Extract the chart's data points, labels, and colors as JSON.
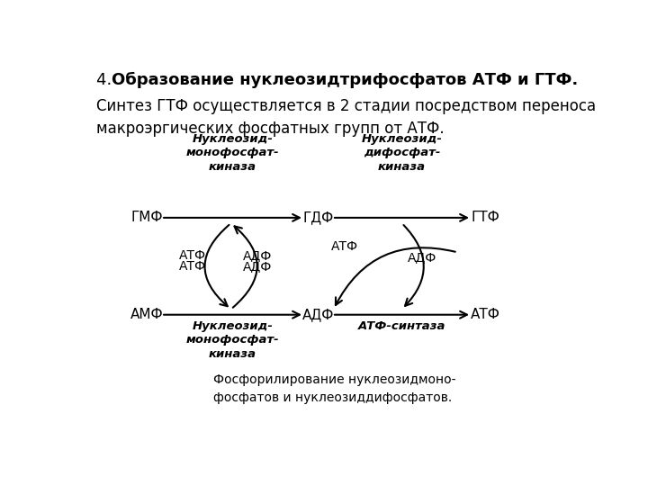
{
  "bg_color": "#ffffff",
  "title_prefix": "4. ",
  "title_bold": "Образование нуклеозидтрифосфатов АТФ и ГТФ.",
  "subtitle": "Синтез ГТФ осуществляется в 2 стадии посредством переноса\nмакроэргических фосфатных групп от АТФ.",
  "caption": "Фосфорилирование нуклеозидмоно-\nфосфатов и нуклеозиддифосфатов.",
  "enzyme1_top": "Нуклеозид-\nмонофосфат-\nкиназа",
  "enzyme2_top": "Нуклеозид-\nдифосфат-\nкиназа",
  "enzyme3_bot": "Нуклеозид-\nмонофосфат-\nкиназа",
  "enzyme4_bot": "АТФ-синтаза",
  "node_GMF": "ГМФ",
  "node_GDF": "ГДФ",
  "node_GTF": "ГТФ",
  "node_AMF": "АМФ",
  "node_ADF": "АДФ",
  "node_ATF": "АТФ",
  "lbl_ATF": "АТФ",
  "lbl_ADF": "АДФ",
  "font_size_title": 13,
  "font_size_node": 11,
  "font_size_enzyme": 9.5,
  "font_size_label": 10,
  "font_size_caption": 10
}
